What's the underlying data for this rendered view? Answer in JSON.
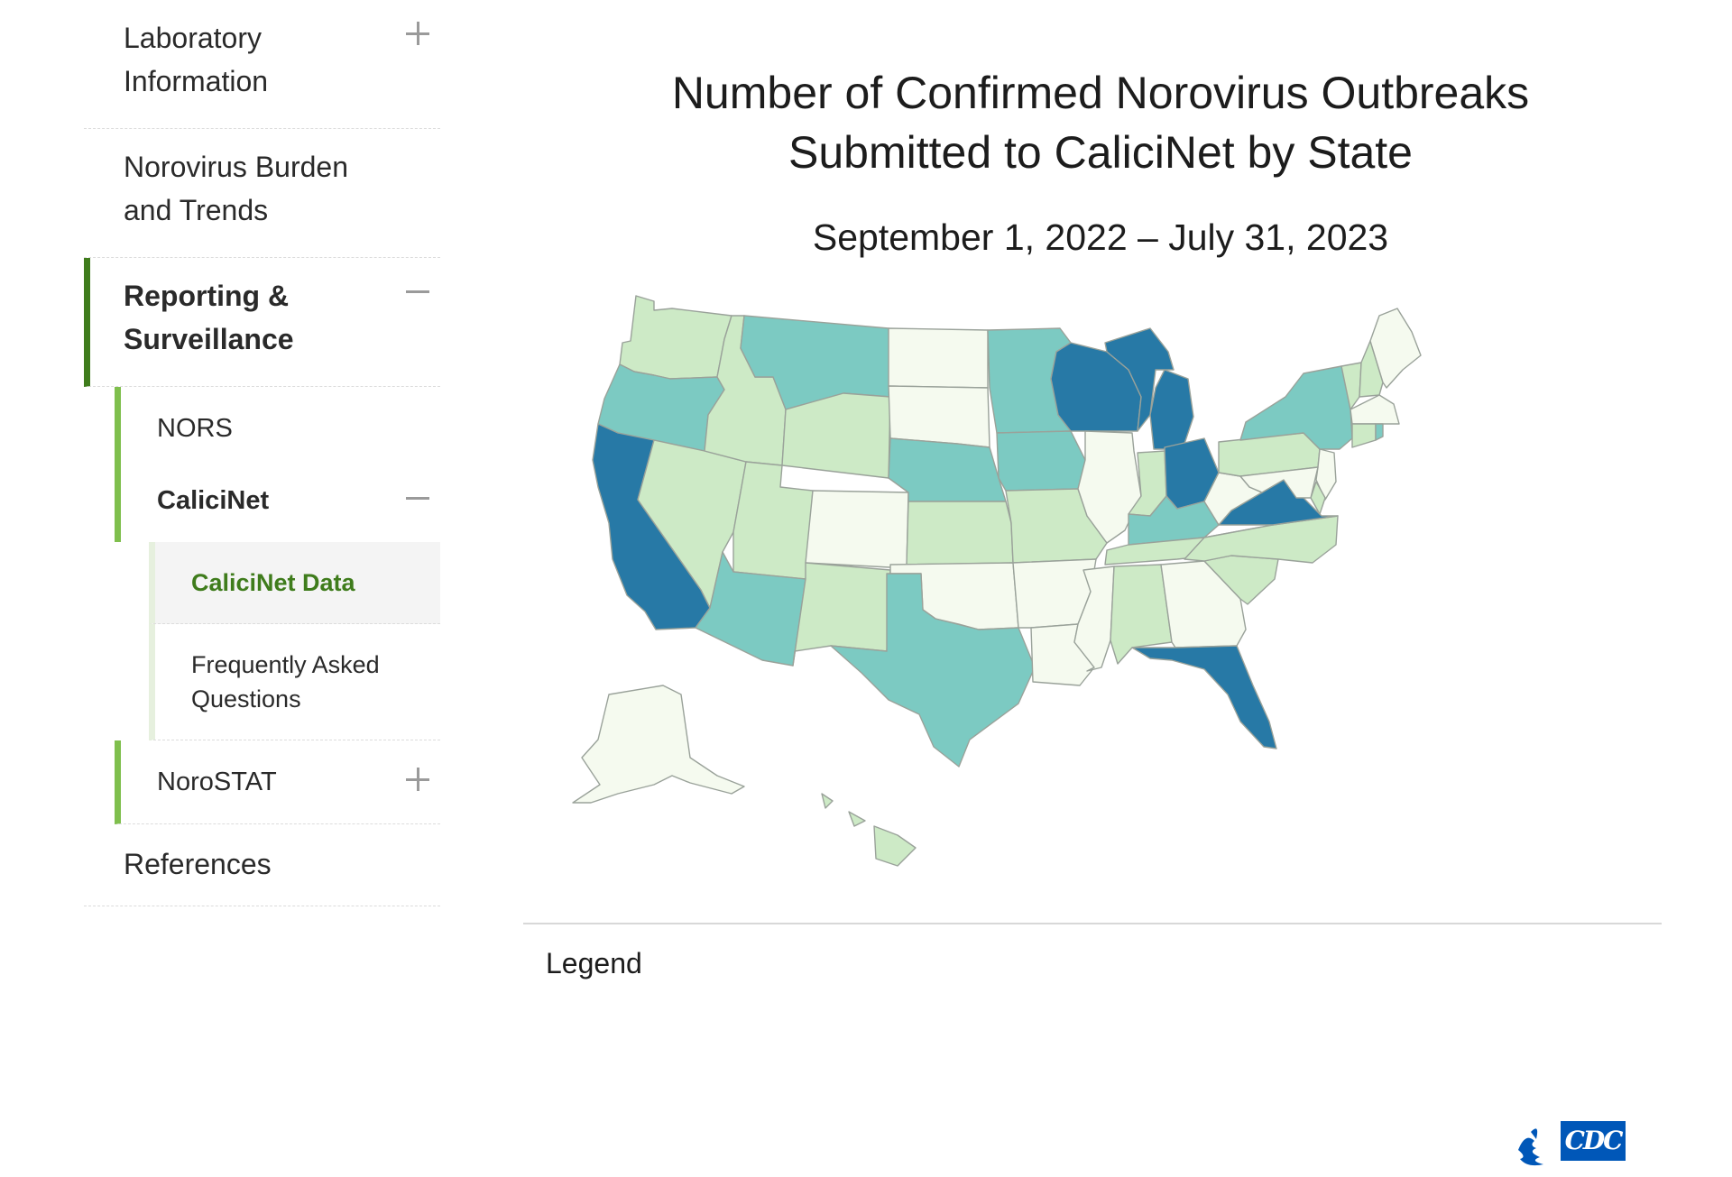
{
  "sidebar": {
    "items": [
      {
        "label": "Laboratory Information",
        "toggle": "plus"
      },
      {
        "label": "Norovirus Burden and Trends"
      },
      {
        "label": "Reporting & Surveillance",
        "toggle": "minus",
        "active": true,
        "children": [
          {
            "label": "NORS"
          },
          {
            "label": "CaliciNet",
            "toggle": "minus",
            "children": [
              {
                "label": "CaliciNet Data",
                "current": true
              },
              {
                "label": "Frequently Asked Questions"
              }
            ]
          },
          {
            "label": "NoroSTAT",
            "toggle": "plus"
          }
        ]
      },
      {
        "label": "References"
      }
    ]
  },
  "main": {
    "title_line1": "Number of Confirmed Norovirus Outbreaks",
    "title_line2": "Submitted to CaliciNet by State",
    "subtitle": "September 1, 2022 – July 31, 2023",
    "legend_heading": "Legend"
  },
  "colors": {
    "class1": "#f5faef",
    "class2": "#cdeac6",
    "class3": "#7ccac2",
    "class4": "#2779a6",
    "accent_green": "#3f7c1c",
    "cdc_blue": "#0057b8"
  },
  "map": {
    "states": [
      {
        "name": "Washington",
        "class": 2
      },
      {
        "name": "Oregon",
        "class": 3
      },
      {
        "name": "California",
        "class": 4
      },
      {
        "name": "Nevada",
        "class": 2
      },
      {
        "name": "Idaho",
        "class": 2
      },
      {
        "name": "Montana",
        "class": 3
      },
      {
        "name": "Wyoming",
        "class": 2
      },
      {
        "name": "Utah",
        "class": 2
      },
      {
        "name": "Arizona",
        "class": 3
      },
      {
        "name": "Colorado",
        "class": 1
      },
      {
        "name": "New Mexico",
        "class": 2
      },
      {
        "name": "North Dakota",
        "class": 1
      },
      {
        "name": "South Dakota",
        "class": 1
      },
      {
        "name": "Nebraska",
        "class": 3
      },
      {
        "name": "Kansas",
        "class": 2
      },
      {
        "name": "Oklahoma",
        "class": 1
      },
      {
        "name": "Texas",
        "class": 3
      },
      {
        "name": "Minnesota",
        "class": 3
      },
      {
        "name": "Iowa",
        "class": 3
      },
      {
        "name": "Missouri",
        "class": 2
      },
      {
        "name": "Arkansas",
        "class": 1
      },
      {
        "name": "Louisiana",
        "class": 1
      },
      {
        "name": "Wisconsin",
        "class": 4
      },
      {
        "name": "Illinois",
        "class": 1
      },
      {
        "name": "Michigan",
        "class": 4
      },
      {
        "name": "Indiana",
        "class": 2
      },
      {
        "name": "Ohio",
        "class": 4
      },
      {
        "name": "Kentucky",
        "class": 3
      },
      {
        "name": "Tennessee",
        "class": 2
      },
      {
        "name": "Mississippi",
        "class": 1
      },
      {
        "name": "Alabama",
        "class": 2
      },
      {
        "name": "Georgia",
        "class": 1
      },
      {
        "name": "Florida",
        "class": 4
      },
      {
        "name": "South Carolina",
        "class": 2
      },
      {
        "name": "North Carolina",
        "class": 2
      },
      {
        "name": "Virginia",
        "class": 4
      },
      {
        "name": "West Virginia",
        "class": 1
      },
      {
        "name": "Pennsylvania",
        "class": 2
      },
      {
        "name": "New York",
        "class": 3
      },
      {
        "name": "Vermont",
        "class": 2
      },
      {
        "name": "New Hampshire",
        "class": 2
      },
      {
        "name": "Maine",
        "class": 1
      },
      {
        "name": "Massachusetts",
        "class": 1
      },
      {
        "name": "Connecticut",
        "class": 2
      },
      {
        "name": "Rhode Island",
        "class": 3
      },
      {
        "name": "New Jersey",
        "class": 1
      },
      {
        "name": "Delaware",
        "class": 2
      },
      {
        "name": "Maryland",
        "class": 1
      },
      {
        "name": "Alaska",
        "class": 1
      },
      {
        "name": "Hawaii",
        "class": 2
      }
    ]
  }
}
